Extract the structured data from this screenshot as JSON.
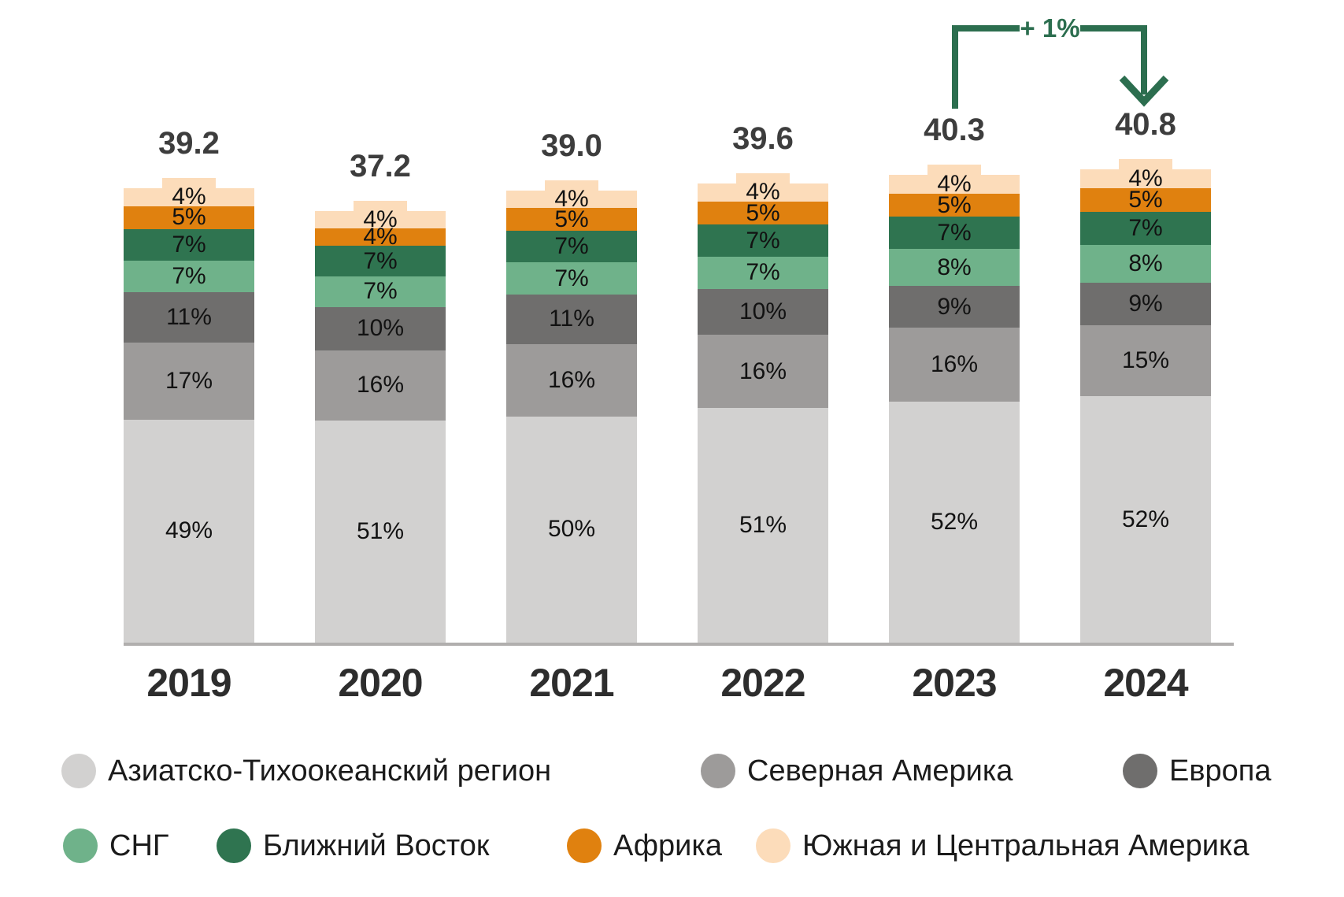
{
  "chart_data": {
    "type": "bar",
    "stacked": true,
    "categories": [
      "2019",
      "2020",
      "2021",
      "2022",
      "2023",
      "2024"
    ],
    "totals": [
      "39.2",
      "37.2",
      "39.0",
      "39.6",
      "40.3",
      "40.8"
    ],
    "value_suffix": "%",
    "series": [
      {
        "name": "Азиатско-Тихоокеанский регион",
        "color": "#d2d1d0",
        "values": [
          49,
          51,
          50,
          51,
          52,
          52
        ]
      },
      {
        "name": "Северная Америка",
        "color": "#9d9b9a",
        "values": [
          17,
          16,
          16,
          16,
          16,
          15
        ]
      },
      {
        "name": "Европа",
        "color": "#6f6e6d",
        "values": [
          11,
          10,
          11,
          10,
          9,
          9
        ]
      },
      {
        "name": "СНГ",
        "color": "#6fb28a",
        "values": [
          7,
          7,
          7,
          7,
          8,
          8
        ]
      },
      {
        "name": "Ближний Восток",
        "color": "#2f7450",
        "values": [
          7,
          7,
          7,
          7,
          7,
          7
        ]
      },
      {
        "name": "Африка",
        "color": "#e0810f",
        "values": [
          5,
          4,
          5,
          5,
          5,
          5
        ]
      },
      {
        "name": "Южная и Центральная Америка",
        "color": "#fcdcba",
        "values": [
          4,
          4,
          4,
          4,
          4,
          4
        ]
      }
    ],
    "legend_rows": [
      [
        0,
        1,
        2
      ],
      [
        3,
        4,
        5,
        6
      ]
    ],
    "annotation": {
      "label": "+ 1%",
      "from_category": "2023",
      "to_category": "2024",
      "color": "#2c6e4f"
    },
    "axis": {
      "baseline_color": "#b1afae"
    },
    "label_colors": {
      "segment": "#121212",
      "total": "#3d3d3d",
      "year": "#2d2d2d",
      "legend": "#1b1b1b"
    }
  }
}
